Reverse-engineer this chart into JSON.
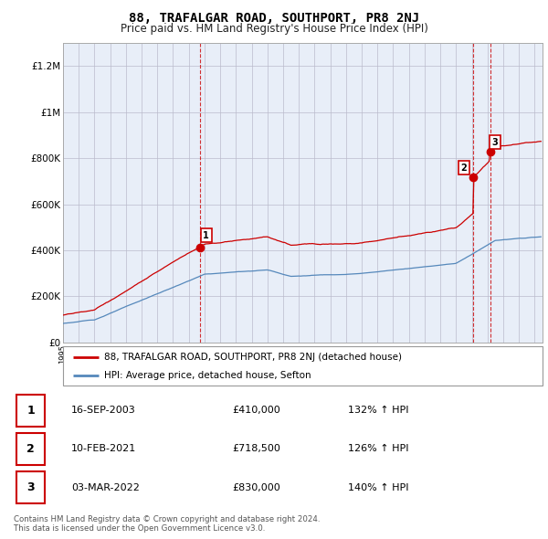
{
  "title": "88, TRAFALGAR ROAD, SOUTHPORT, PR8 2NJ",
  "subtitle": "Price paid vs. HM Land Registry's House Price Index (HPI)",
  "ylabel_ticks": [
    "£0",
    "£200K",
    "£400K",
    "£600K",
    "£800K",
    "£1M",
    "£1.2M"
  ],
  "ytick_values": [
    0,
    200000,
    400000,
    600000,
    800000,
    1000000,
    1200000
  ],
  "ylim": [
    0,
    1300000
  ],
  "xlim_start": 1995.0,
  "xlim_end": 2025.5,
  "sale_points": [
    {
      "year": 2003.71,
      "price": 410000,
      "label": "1"
    },
    {
      "year": 2021.11,
      "price": 718500,
      "label": "2"
    },
    {
      "year": 2022.17,
      "price": 830000,
      "label": "3"
    }
  ],
  "vline_years": [
    2003.71,
    2021.11,
    2022.17
  ],
  "red_line_color": "#cc0000",
  "blue_line_color": "#5588bb",
  "vline_color": "#cc0000",
  "grid_color": "#bbbbcc",
  "chart_bg": "#e8eef8",
  "background_color": "#ffffff",
  "legend_entries": [
    "88, TRAFALGAR ROAD, SOUTHPORT, PR8 2NJ (detached house)",
    "HPI: Average price, detached house, Sefton"
  ],
  "table_rows": [
    {
      "num": "1",
      "date": "16-SEP-2003",
      "price": "£410,000",
      "hpi": "132% ↑ HPI"
    },
    {
      "num": "2",
      "date": "10-FEB-2021",
      "price": "£718,500",
      "hpi": "126% ↑ HPI"
    },
    {
      "num": "3",
      "date": "03-MAR-2022",
      "price": "£830,000",
      "hpi": "140% ↑ HPI"
    }
  ],
  "footnote": "Contains HM Land Registry data © Crown copyright and database right 2024.\nThis data is licensed under the Open Government Licence v3.0.",
  "title_fontsize": 10,
  "subtitle_fontsize": 8.5,
  "tick_fontsize": 7.5,
  "label_box_color": "#cc0000"
}
